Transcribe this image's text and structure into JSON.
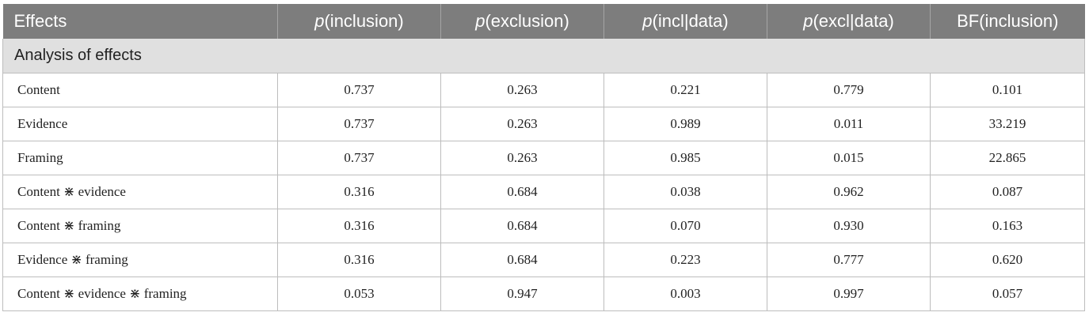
{
  "table": {
    "headers": [
      {
        "prefix": "",
        "text": "Effects"
      },
      {
        "prefix": "p",
        "text": "(inclusion)"
      },
      {
        "prefix": "p",
        "text": "(exclusion)"
      },
      {
        "prefix": "p",
        "text": "(incl|data)"
      },
      {
        "prefix": "p",
        "text": "(excl|data)"
      },
      {
        "prefix": "",
        "text": "BF(inclusion)"
      }
    ],
    "section_label": "Analysis of effects",
    "rows": [
      {
        "effect": "Content",
        "p_inclusion": "0.737",
        "p_exclusion": "0.263",
        "p_incl_data": "0.221",
        "p_excl_data": "0.779",
        "bf_inclusion": "0.101"
      },
      {
        "effect": "Evidence",
        "p_inclusion": "0.737",
        "p_exclusion": "0.263",
        "p_incl_data": "0.989",
        "p_excl_data": "0.011",
        "bf_inclusion": "33.219"
      },
      {
        "effect": "Framing",
        "p_inclusion": "0.737",
        "p_exclusion": "0.263",
        "p_incl_data": "0.985",
        "p_excl_data": "0.015",
        "bf_inclusion": "22.865"
      },
      {
        "effect": "Content ⋇ evidence",
        "p_inclusion": "0.316",
        "p_exclusion": "0.684",
        "p_incl_data": "0.038",
        "p_excl_data": "0.962",
        "bf_inclusion": "0.087"
      },
      {
        "effect": "Content ⋇ framing",
        "p_inclusion": "0.316",
        "p_exclusion": "0.684",
        "p_incl_data": "0.070",
        "p_excl_data": "0.930",
        "bf_inclusion": "0.163"
      },
      {
        "effect": "Evidence ⋇ framing",
        "p_inclusion": "0.316",
        "p_exclusion": "0.684",
        "p_incl_data": "0.223",
        "p_excl_data": "0.777",
        "bf_inclusion": "0.620"
      },
      {
        "effect": "Content ⋇ evidence ⋇ framing",
        "p_inclusion": "0.053",
        "p_exclusion": "0.947",
        "p_incl_data": "0.003",
        "p_excl_data": "0.997",
        "bf_inclusion": "0.057"
      }
    ]
  }
}
